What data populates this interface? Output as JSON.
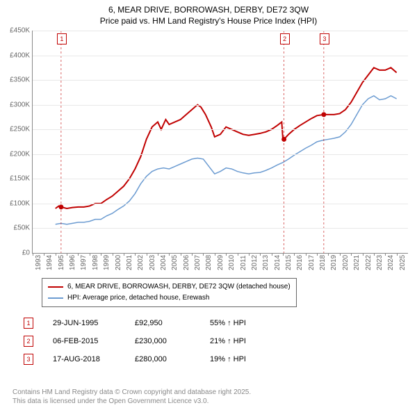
{
  "title_line1": "6, MEAR DRIVE, BORROWASH, DERBY, DE72 3QW",
  "title_line2": "Price paid vs. HM Land Registry's House Price Index (HPI)",
  "chart": {
    "type": "line",
    "background_color": "#ffffff",
    "grid_color": "#e8e8e8",
    "axis_color": "#888888",
    "label_fontsize_pt": 10,
    "xlim": [
      1993,
      2026
    ],
    "ylim": [
      0,
      450000
    ],
    "ytick_step": 50000,
    "yticks": [
      "£0",
      "£50K",
      "£100K",
      "£150K",
      "£200K",
      "£250K",
      "£300K",
      "£350K",
      "£400K",
      "£450K"
    ],
    "xticks": [
      1993,
      1994,
      1995,
      1996,
      1997,
      1998,
      1999,
      2000,
      2001,
      2002,
      2003,
      2004,
      2005,
      2006,
      2007,
      2008,
      2009,
      2010,
      2011,
      2012,
      2013,
      2014,
      2015,
      2016,
      2017,
      2018,
      2019,
      2020,
      2021,
      2022,
      2023,
      2024,
      2025
    ],
    "series": [
      {
        "name": "price_paid",
        "color": "#c00000",
        "line_width": 2,
        "points": [
          [
            1995.0,
            90000
          ],
          [
            1995.3,
            95000
          ],
          [
            1995.5,
            92950
          ],
          [
            1996.0,
            90000
          ],
          [
            1996.5,
            92000
          ],
          [
            1997.0,
            93000
          ],
          [
            1997.5,
            93000
          ],
          [
            1998.0,
            95000
          ],
          [
            1998.5,
            100000
          ],
          [
            1999.0,
            100000
          ],
          [
            1999.5,
            108000
          ],
          [
            2000.0,
            115000
          ],
          [
            2000.5,
            125000
          ],
          [
            2001.0,
            135000
          ],
          [
            2001.5,
            150000
          ],
          [
            2002.0,
            170000
          ],
          [
            2002.5,
            195000
          ],
          [
            2003.0,
            230000
          ],
          [
            2003.5,
            255000
          ],
          [
            2004.0,
            265000
          ],
          [
            2004.3,
            250000
          ],
          [
            2004.7,
            270000
          ],
          [
            2005.0,
            260000
          ],
          [
            2005.5,
            265000
          ],
          [
            2006.0,
            270000
          ],
          [
            2006.5,
            280000
          ],
          [
            2007.0,
            290000
          ],
          [
            2007.5,
            300000
          ],
          [
            2007.8,
            295000
          ],
          [
            2008.2,
            280000
          ],
          [
            2008.7,
            255000
          ],
          [
            2009.0,
            235000
          ],
          [
            2009.5,
            240000
          ],
          [
            2010.0,
            255000
          ],
          [
            2010.5,
            250000
          ],
          [
            2011.0,
            245000
          ],
          [
            2011.5,
            240000
          ],
          [
            2012.0,
            238000
          ],
          [
            2012.5,
            240000
          ],
          [
            2013.0,
            242000
          ],
          [
            2013.5,
            245000
          ],
          [
            2014.0,
            250000
          ],
          [
            2014.5,
            258000
          ],
          [
            2014.9,
            265000
          ],
          [
            2015.0,
            230000
          ],
          [
            2015.1,
            230000
          ],
          [
            2015.5,
            240000
          ],
          [
            2016.0,
            250000
          ],
          [
            2016.5,
            258000
          ],
          [
            2017.0,
            265000
          ],
          [
            2017.5,
            272000
          ],
          [
            2018.0,
            278000
          ],
          [
            2018.6,
            280000
          ],
          [
            2019.0,
            280000
          ],
          [
            2019.5,
            280000
          ],
          [
            2020.0,
            282000
          ],
          [
            2020.5,
            290000
          ],
          [
            2021.0,
            305000
          ],
          [
            2021.5,
            325000
          ],
          [
            2022.0,
            345000
          ],
          [
            2022.5,
            360000
          ],
          [
            2023.0,
            375000
          ],
          [
            2023.5,
            370000
          ],
          [
            2024.0,
            370000
          ],
          [
            2024.5,
            375000
          ],
          [
            2025.0,
            365000
          ]
        ]
      },
      {
        "name": "hpi",
        "color": "#6b9bd1",
        "line_width": 1.5,
        "points": [
          [
            1995.0,
            58000
          ],
          [
            1995.5,
            60000
          ],
          [
            1996.0,
            58000
          ],
          [
            1996.5,
            60000
          ],
          [
            1997.0,
            62000
          ],
          [
            1997.5,
            62000
          ],
          [
            1998.0,
            64000
          ],
          [
            1998.5,
            68000
          ],
          [
            1999.0,
            68000
          ],
          [
            1999.5,
            75000
          ],
          [
            2000.0,
            80000
          ],
          [
            2000.5,
            88000
          ],
          [
            2001.0,
            95000
          ],
          [
            2001.5,
            105000
          ],
          [
            2002.0,
            120000
          ],
          [
            2002.5,
            140000
          ],
          [
            2003.0,
            155000
          ],
          [
            2003.5,
            165000
          ],
          [
            2004.0,
            170000
          ],
          [
            2004.5,
            172000
          ],
          [
            2005.0,
            170000
          ],
          [
            2005.5,
            175000
          ],
          [
            2006.0,
            180000
          ],
          [
            2006.5,
            185000
          ],
          [
            2007.0,
            190000
          ],
          [
            2007.5,
            192000
          ],
          [
            2008.0,
            190000
          ],
          [
            2008.5,
            175000
          ],
          [
            2009.0,
            160000
          ],
          [
            2009.5,
            165000
          ],
          [
            2010.0,
            172000
          ],
          [
            2010.5,
            170000
          ],
          [
            2011.0,
            165000
          ],
          [
            2011.5,
            162000
          ],
          [
            2012.0,
            160000
          ],
          [
            2012.5,
            162000
          ],
          [
            2013.0,
            163000
          ],
          [
            2013.5,
            167000
          ],
          [
            2014.0,
            172000
          ],
          [
            2014.5,
            178000
          ],
          [
            2015.0,
            183000
          ],
          [
            2015.5,
            190000
          ],
          [
            2016.0,
            198000
          ],
          [
            2016.5,
            205000
          ],
          [
            2017.0,
            212000
          ],
          [
            2017.5,
            218000
          ],
          [
            2018.0,
            225000
          ],
          [
            2018.5,
            228000
          ],
          [
            2019.0,
            230000
          ],
          [
            2019.5,
            232000
          ],
          [
            2020.0,
            235000
          ],
          [
            2020.5,
            245000
          ],
          [
            2021.0,
            260000
          ],
          [
            2021.5,
            280000
          ],
          [
            2022.0,
            300000
          ],
          [
            2022.5,
            312000
          ],
          [
            2023.0,
            318000
          ],
          [
            2023.5,
            310000
          ],
          [
            2024.0,
            312000
          ],
          [
            2024.5,
            318000
          ],
          [
            2025.0,
            312000
          ]
        ]
      }
    ],
    "sale_markers": [
      {
        "n": "1",
        "x": 1995.5,
        "y": 92950
      },
      {
        "n": "2",
        "x": 2015.1,
        "y": 230000
      },
      {
        "n": "3",
        "x": 2018.6,
        "y": 280000
      }
    ]
  },
  "legend": {
    "items": [
      {
        "color": "#c00000",
        "label": "6, MEAR DRIVE, BORROWASH, DERBY, DE72 3QW (detached house)"
      },
      {
        "color": "#6b9bd1",
        "label": "HPI: Average price, detached house, Erewash"
      }
    ]
  },
  "sales_table": [
    {
      "n": "1",
      "date": "29-JUN-1995",
      "price": "£92,950",
      "delta": "55% ↑ HPI"
    },
    {
      "n": "2",
      "date": "06-FEB-2015",
      "price": "£230,000",
      "delta": "21% ↑ HPI"
    },
    {
      "n": "3",
      "date": "17-AUG-2018",
      "price": "£280,000",
      "delta": "19% ↑ HPI"
    }
  ],
  "footer_line1": "Contains HM Land Registry data © Crown copyright and database right 2025.",
  "footer_line2": "This data is licensed under the Open Government Licence v3.0."
}
